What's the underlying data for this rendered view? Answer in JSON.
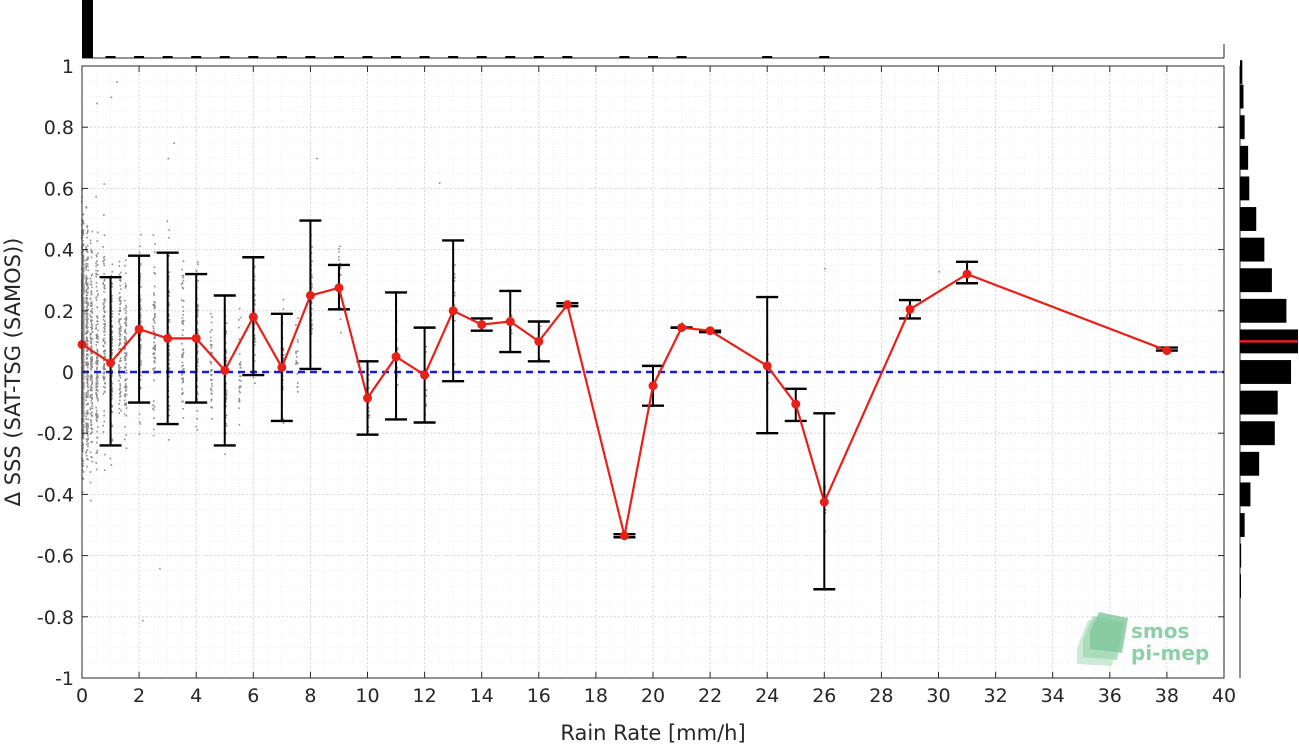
{
  "chart_data": {
    "type": "line",
    "xlabel": "Rain Rate [mm/h]",
    "ylabel": "Δ SSS (SAT-TSG (SAMOS))",
    "xlim": [
      0,
      40
    ],
    "ylim": [
      -1,
      1
    ],
    "x_ticks": [
      "0",
      "2",
      "4",
      "6",
      "8",
      "10",
      "12",
      "14",
      "16",
      "18",
      "20",
      "22",
      "24",
      "26",
      "28",
      "30",
      "32",
      "34",
      "36",
      "38",
      "40"
    ],
    "y_ticks": [
      "1",
      "0.8",
      "0.6",
      "0.4",
      "0.2",
      "0",
      "-0.2",
      "-0.4",
      "-0.6",
      "-0.8",
      "-1"
    ],
    "grid": true,
    "reference_line": {
      "y": 0,
      "style": "dashed",
      "color": "#1a1ad6"
    },
    "series": [
      {
        "style": "red line with markers and error bars",
        "color": "#e8201a",
        "x": [
          0,
          1,
          2,
          3,
          4,
          5,
          6,
          7,
          8,
          9,
          10,
          11,
          12,
          13,
          14,
          15,
          16,
          17,
          19,
          20,
          21,
          22,
          24,
          25,
          26,
          29,
          31,
          38
        ],
        "y": [
          0.09,
          0.03,
          0.14,
          0.11,
          0.11,
          0.005,
          0.18,
          0.015,
          0.25,
          0.275,
          -0.085,
          0.05,
          -0.01,
          0.2,
          0.155,
          0.165,
          0.1,
          0.22,
          -0.535,
          -0.045,
          0.145,
          0.135,
          0.02,
          -0.105,
          -0.425,
          0.205,
          0.32,
          0.07
        ],
        "low": [
          null,
          -0.24,
          -0.1,
          -0.17,
          -0.1,
          -0.24,
          -0.01,
          -0.16,
          0.01,
          0.205,
          -0.205,
          -0.155,
          -0.165,
          -0.03,
          0.135,
          0.065,
          0.035,
          0.215,
          -0.54,
          -0.11,
          0.145,
          0.13,
          -0.2,
          -0.16,
          -0.71,
          0.175,
          0.29,
          0.07
        ],
        "high": [
          null,
          0.31,
          0.38,
          0.39,
          0.32,
          0.25,
          0.375,
          0.19,
          0.495,
          0.35,
          0.035,
          0.26,
          0.145,
          0.43,
          0.175,
          0.265,
          0.165,
          0.225,
          -0.53,
          0.02,
          0.145,
          0.135,
          0.245,
          -0.055,
          -0.135,
          0.235,
          0.36,
          0.08
        ]
      }
    ],
    "scatter_note": "dense grey scatter of individual points, rain rate 0-10 mm/h",
    "top_histogram": {
      "bins_x": [
        0
      ],
      "dominant_bin": 0
    },
    "right_histogram": {
      "bin_centers": [
        0.98,
        0.9,
        0.8,
        0.7,
        0.6,
        0.5,
        0.4,
        0.3,
        0.2,
        0.1,
        0.0,
        -0.1,
        -0.2,
        -0.3,
        -0.4,
        -0.5,
        -0.6,
        -0.7
      ],
      "relative_counts": [
        0.04,
        0.06,
        0.08,
        0.14,
        0.16,
        0.28,
        0.42,
        0.55,
        0.8,
        1.0,
        0.88,
        0.65,
        0.6,
        0.33,
        0.18,
        0.08,
        0.02,
        0.01
      ],
      "median_line": 0.1,
      "median_color": "#e8201a"
    }
  },
  "logo": {
    "line1": "smos",
    "line2": "pi-mep"
  }
}
